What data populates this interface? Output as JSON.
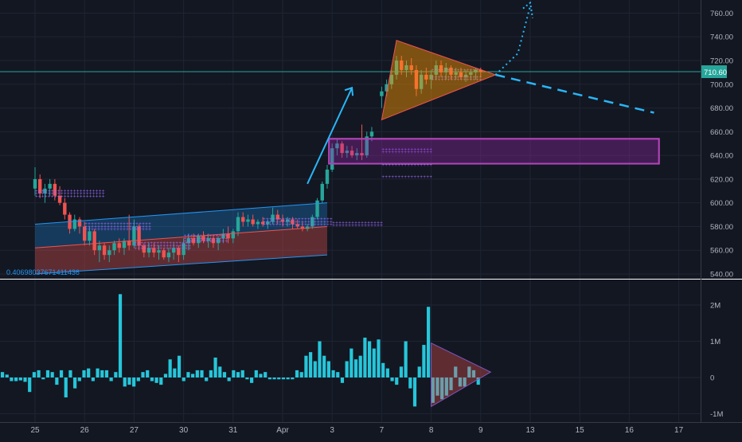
{
  "chart_data": [
    {
      "type": "candlestick",
      "role": "price",
      "price_axis": {
        "min": 530,
        "max": 770,
        "ticks": [
          540,
          560,
          580,
          600,
          620,
          640,
          660,
          680,
          700,
          720,
          740,
          760
        ]
      },
      "last_price_label": "710.60",
      "last_price": 710.6,
      "indicator_value_label": "0.40698037671411436",
      "candles": [
        {
          "t": 0.0,
          "o": 612,
          "h": 630,
          "l": 606,
          "c": 620
        },
        {
          "t": 0.1,
          "o": 620,
          "h": 624,
          "l": 604,
          "c": 608
        },
        {
          "t": 0.2,
          "o": 608,
          "h": 616,
          "l": 600,
          "c": 612
        },
        {
          "t": 0.3,
          "o": 612,
          "h": 620,
          "l": 606,
          "c": 616
        },
        {
          "t": 0.4,
          "o": 616,
          "h": 620,
          "l": 602,
          "c": 606
        },
        {
          "t": 0.5,
          "o": 606,
          "h": 614,
          "l": 598,
          "c": 600
        },
        {
          "t": 0.6,
          "o": 600,
          "h": 604,
          "l": 586,
          "c": 590
        },
        {
          "t": 0.7,
          "o": 590,
          "h": 592,
          "l": 574,
          "c": 578
        },
        {
          "t": 0.8,
          "o": 578,
          "h": 590,
          "l": 576,
          "c": 586
        },
        {
          "t": 0.9,
          "o": 586,
          "h": 588,
          "l": 574,
          "c": 580
        },
        {
          "t": 1.0,
          "o": 580,
          "h": 584,
          "l": 564,
          "c": 568
        },
        {
          "t": 1.1,
          "o": 568,
          "h": 580,
          "l": 564,
          "c": 576
        },
        {
          "t": 1.2,
          "o": 576,
          "h": 578,
          "l": 556,
          "c": 560
        },
        {
          "t": 1.3,
          "o": 560,
          "h": 568,
          "l": 550,
          "c": 564
        },
        {
          "t": 1.4,
          "o": 564,
          "h": 566,
          "l": 552,
          "c": 556
        },
        {
          "t": 1.5,
          "o": 556,
          "h": 564,
          "l": 550,
          "c": 560
        },
        {
          "t": 1.6,
          "o": 560,
          "h": 568,
          "l": 556,
          "c": 566
        },
        {
          "t": 1.7,
          "o": 566,
          "h": 570,
          "l": 558,
          "c": 562
        },
        {
          "t": 1.8,
          "o": 562,
          "h": 570,
          "l": 556,
          "c": 568
        },
        {
          "t": 1.9,
          "o": 568,
          "h": 590,
          "l": 560,
          "c": 564
        },
        {
          "t": 2.0,
          "o": 564,
          "h": 586,
          "l": 562,
          "c": 580
        },
        {
          "t": 2.1,
          "o": 580,
          "h": 582,
          "l": 560,
          "c": 564
        },
        {
          "t": 2.2,
          "o": 564,
          "h": 566,
          "l": 554,
          "c": 558
        },
        {
          "t": 2.3,
          "o": 558,
          "h": 566,
          "l": 554,
          "c": 562
        },
        {
          "t": 2.4,
          "o": 562,
          "h": 566,
          "l": 554,
          "c": 558
        },
        {
          "t": 2.5,
          "o": 558,
          "h": 564,
          "l": 552,
          "c": 560
        },
        {
          "t": 2.6,
          "o": 560,
          "h": 562,
          "l": 552,
          "c": 554
        },
        {
          "t": 2.7,
          "o": 554,
          "h": 562,
          "l": 550,
          "c": 558
        },
        {
          "t": 2.8,
          "o": 558,
          "h": 566,
          "l": 552,
          "c": 562
        },
        {
          "t": 2.9,
          "o": 562,
          "h": 564,
          "l": 550,
          "c": 556
        },
        {
          "t": 3.0,
          "o": 556,
          "h": 570,
          "l": 552,
          "c": 566
        },
        {
          "t": 3.1,
          "o": 566,
          "h": 574,
          "l": 560,
          "c": 570
        },
        {
          "t": 3.2,
          "o": 570,
          "h": 574,
          "l": 564,
          "c": 566
        },
        {
          "t": 3.3,
          "o": 566,
          "h": 574,
          "l": 562,
          "c": 572
        },
        {
          "t": 3.4,
          "o": 572,
          "h": 576,
          "l": 566,
          "c": 568
        },
        {
          "t": 3.5,
          "o": 568,
          "h": 574,
          "l": 562,
          "c": 570
        },
        {
          "t": 3.6,
          "o": 570,
          "h": 572,
          "l": 562,
          "c": 566
        },
        {
          "t": 3.7,
          "o": 566,
          "h": 572,
          "l": 560,
          "c": 570
        },
        {
          "t": 3.8,
          "o": 570,
          "h": 578,
          "l": 566,
          "c": 574
        },
        {
          "t": 3.9,
          "o": 574,
          "h": 580,
          "l": 566,
          "c": 570
        },
        {
          "t": 4.0,
          "o": 570,
          "h": 578,
          "l": 566,
          "c": 576
        },
        {
          "t": 4.1,
          "o": 576,
          "h": 592,
          "l": 572,
          "c": 588
        },
        {
          "t": 4.2,
          "o": 588,
          "h": 592,
          "l": 580,
          "c": 584
        },
        {
          "t": 4.3,
          "o": 584,
          "h": 590,
          "l": 580,
          "c": 586
        },
        {
          "t": 4.4,
          "o": 586,
          "h": 590,
          "l": 580,
          "c": 582
        },
        {
          "t": 4.5,
          "o": 582,
          "h": 586,
          "l": 578,
          "c": 584
        },
        {
          "t": 4.6,
          "o": 584,
          "h": 588,
          "l": 580,
          "c": 582
        },
        {
          "t": 4.7,
          "o": 582,
          "h": 586,
          "l": 578,
          "c": 584
        },
        {
          "t": 4.8,
          "o": 584,
          "h": 596,
          "l": 582,
          "c": 590
        },
        {
          "t": 4.9,
          "o": 590,
          "h": 594,
          "l": 582,
          "c": 586
        },
        {
          "t": 5.0,
          "o": 586,
          "h": 590,
          "l": 580,
          "c": 584
        },
        {
          "t": 5.1,
          "o": 584,
          "h": 588,
          "l": 580,
          "c": 586
        },
        {
          "t": 5.2,
          "o": 586,
          "h": 588,
          "l": 578,
          "c": 582
        },
        {
          "t": 5.3,
          "o": 582,
          "h": 586,
          "l": 578,
          "c": 580
        },
        {
          "t": 5.4,
          "o": 580,
          "h": 584,
          "l": 576,
          "c": 578
        },
        {
          "t": 5.5,
          "o": 578,
          "h": 582,
          "l": 576,
          "c": 580
        },
        {
          "t": 5.6,
          "o": 580,
          "h": 590,
          "l": 578,
          "c": 588
        },
        {
          "t": 5.7,
          "o": 588,
          "h": 604,
          "l": 586,
          "c": 602
        },
        {
          "t": 5.8,
          "o": 602,
          "h": 618,
          "l": 600,
          "c": 616
        },
        {
          "t": 5.9,
          "o": 616,
          "h": 632,
          "l": 612,
          "c": 628
        },
        {
          "t": 6.0,
          "o": 628,
          "h": 650,
          "l": 626,
          "c": 646
        },
        {
          "t": 6.1,
          "o": 646,
          "h": 654,
          "l": 640,
          "c": 650
        },
        {
          "t": 6.2,
          "o": 650,
          "h": 652,
          "l": 638,
          "c": 642
        },
        {
          "t": 6.3,
          "o": 642,
          "h": 648,
          "l": 638,
          "c": 644
        },
        {
          "t": 6.4,
          "o": 644,
          "h": 648,
          "l": 638,
          "c": 640
        },
        {
          "t": 6.5,
          "o": 640,
          "h": 646,
          "l": 636,
          "c": 642
        },
        {
          "t": 6.6,
          "o": 642,
          "h": 666,
          "l": 636,
          "c": 640
        },
        {
          "t": 6.7,
          "o": 640,
          "h": 660,
          "l": 638,
          "c": 656
        },
        {
          "t": 6.8,
          "o": 656,
          "h": 664,
          "l": 652,
          "c": 660
        },
        {
          "t": 7.0,
          "o": 690,
          "h": 698,
          "l": 680,
          "c": 694
        },
        {
          "t": 7.1,
          "o": 694,
          "h": 704,
          "l": 690,
          "c": 700
        },
        {
          "t": 7.2,
          "o": 700,
          "h": 712,
          "l": 696,
          "c": 708
        },
        {
          "t": 7.3,
          "o": 708,
          "h": 724,
          "l": 704,
          "c": 720
        },
        {
          "t": 7.4,
          "o": 720,
          "h": 724,
          "l": 708,
          "c": 712
        },
        {
          "t": 7.5,
          "o": 712,
          "h": 720,
          "l": 706,
          "c": 716
        },
        {
          "t": 7.6,
          "o": 716,
          "h": 722,
          "l": 708,
          "c": 712
        },
        {
          "t": 7.7,
          "o": 712,
          "h": 716,
          "l": 690,
          "c": 696
        },
        {
          "t": 7.8,
          "o": 696,
          "h": 712,
          "l": 692,
          "c": 708
        },
        {
          "t": 7.9,
          "o": 708,
          "h": 714,
          "l": 700,
          "c": 704
        },
        {
          "t": 8.0,
          "o": 704,
          "h": 712,
          "l": 696,
          "c": 708
        },
        {
          "t": 8.1,
          "o": 708,
          "h": 720,
          "l": 704,
          "c": 716
        },
        {
          "t": 8.2,
          "o": 716,
          "h": 720,
          "l": 706,
          "c": 710
        },
        {
          "t": 8.3,
          "o": 710,
          "h": 718,
          "l": 704,
          "c": 714
        },
        {
          "t": 8.4,
          "o": 714,
          "h": 716,
          "l": 704,
          "c": 708
        },
        {
          "t": 8.5,
          "o": 708,
          "h": 714,
          "l": 704,
          "c": 710
        },
        {
          "t": 8.6,
          "o": 710,
          "h": 714,
          "l": 704,
          "c": 706
        },
        {
          "t": 8.7,
          "o": 706,
          "h": 712,
          "l": 702,
          "c": 708
        },
        {
          "t": 8.8,
          "o": 708,
          "h": 712,
          "l": 704,
          "c": 710
        },
        {
          "t": 8.9,
          "o": 710,
          "h": 714,
          "l": 704,
          "c": 712
        },
        {
          "t": 9.0,
          "o": 712,
          "h": 714,
          "l": 706,
          "c": 710.6
        }
      ],
      "annotations": {
        "channel_top_line": {
          "t1": 0.0,
          "p1": 582,
          "t2": 5.9,
          "p2": 600
        },
        "channel_mid_line": {
          "t1": 0.0,
          "p1": 562,
          "t2": 5.9,
          "p2": 580
        },
        "channel_bottom_line": {
          "t1": 0.0,
          "p1": 540,
          "t2": 5.9,
          "p2": 556
        },
        "demand_zone": {
          "t1": 6.0,
          "t2": 12.6,
          "p_top": 654,
          "p_bottom": 633
        },
        "triangle": [
          {
            "t": 7.0,
            "p": 670
          },
          {
            "t": 7.3,
            "p": 737
          },
          {
            "t": 9.3,
            "p": 708
          }
        ],
        "projection_dashed": {
          "t1": 9.3,
          "p1": 708,
          "t2": 12.5,
          "p2": 676
        },
        "projection_dotted": [
          {
            "t": 9.3,
            "p": 708
          },
          {
            "t": 9.75,
            "p": 726
          },
          {
            "t": 10.0,
            "p": 766
          }
        ],
        "impulse_arrow": {
          "t1": 5.5,
          "p1": 616,
          "t2": 6.4,
          "p2": 697
        },
        "volume_clusters": [
          {
            "t1": 0.0,
            "t2": 1.4,
            "p": 608,
            "rows": 3
          },
          {
            "t1": 1.0,
            "t2": 2.3,
            "p": 580,
            "rows": 3
          },
          {
            "t1": 2.0,
            "t2": 3.1,
            "p": 564,
            "rows": 3
          },
          {
            "t1": 3.0,
            "t2": 3.9,
            "p": 570,
            "rows": 3
          },
          {
            "t1": 4.6,
            "t2": 6.0,
            "p": 584,
            "rows": 3
          },
          {
            "t1": 6.0,
            "t2": 7.0,
            "p": 582,
            "rows": 2
          },
          {
            "t1": 7.0,
            "t2": 8.0,
            "p": 644,
            "rows": 2
          },
          {
            "t1": 7.0,
            "t2": 8.0,
            "p": 632,
            "rows": 1
          },
          {
            "t1": 7.0,
            "t2": 8.0,
            "p": 622,
            "rows": 1
          },
          {
            "t1": 8.0,
            "t2": 9.0,
            "p": 712,
            "rows": 1
          },
          {
            "t1": 8.0,
            "t2": 9.0,
            "p": 705,
            "rows": 2
          }
        ]
      },
      "colors": {
        "up": "#26a69a",
        "down": "#ef5350",
        "zone": "#9c27b0",
        "channel": "#2196f3",
        "annotation": "#29b6f6"
      }
    },
    {
      "type": "bar",
      "role": "oscillator",
      "y_axis": {
        "min": -1.1,
        "max": 2.3,
        "ticks": [
          {
            "v": 2,
            "label": "2M"
          },
          {
            "v": 1,
            "label": "1M"
          },
          {
            "v": 0,
            "label": "0"
          },
          {
            "v": -1,
            "label": "-1M"
          }
        ]
      },
      "values": [
        0.15,
        0.08,
        -0.1,
        -0.1,
        -0.08,
        -0.12,
        -0.4,
        0.15,
        0.2,
        -0.05,
        0.2,
        0.15,
        -0.2,
        0.2,
        -0.55,
        0.2,
        -0.3,
        -0.1,
        0.2,
        0.25,
        -0.1,
        0.25,
        0.2,
        0.2,
        -0.1,
        0.15,
        2.3,
        -0.25,
        -0.2,
        -0.25,
        -0.1,
        0.15,
        0.2,
        -0.1,
        -0.15,
        -0.2,
        0.1,
        0.5,
        0.25,
        0.6,
        -0.1,
        0.15,
        0.1,
        0.2,
        0.2,
        -0.1,
        0.2,
        0.55,
        0.3,
        0.15,
        -0.1,
        0.2,
        0.15,
        0.2,
        -0.05,
        -0.15,
        0.2,
        0.1,
        0.15,
        -0.05,
        -0.05,
        -0.05,
        -0.05,
        -0.05,
        -0.05,
        0.2,
        0.15,
        0.6,
        0.7,
        0.45,
        1.0,
        0.6,
        0.45,
        0.2,
        0.15,
        -0.15,
        0.45,
        0.8,
        0.5,
        0.6,
        1.1,
        1.0,
        0.8,
        1.05,
        0.4,
        0.25,
        -0.1,
        -0.2,
        0.3,
        1.0,
        -0.3,
        -0.8,
        0.3,
        0.9,
        1.95,
        -0.7,
        -0.5,
        -0.6,
        -0.5,
        -0.35,
        0.3,
        -0.25,
        -0.25,
        0.3,
        0.2,
        -0.2
      ],
      "triangle": [
        {
          "t": 8.0,
          "v": 0.95
        },
        {
          "t": 8.0,
          "v": -0.8
        },
        {
          "t": 9.2,
          "v": 0.15
        }
      ]
    }
  ],
  "x_axis": {
    "ticks": [
      {
        "t": 0.0,
        "label": "25"
      },
      {
        "t": 1.0,
        "label": "26"
      },
      {
        "t": 2.0,
        "label": "27"
      },
      {
        "t": 3.0,
        "label": "30"
      },
      {
        "t": 4.0,
        "label": "31"
      },
      {
        "t": 5.0,
        "label": "Apr"
      },
      {
        "t": 6.0,
        "label": "3"
      },
      {
        "t": 7.0,
        "label": "7"
      },
      {
        "t": 8.0,
        "label": "8"
      },
      {
        "t": 9.0,
        "label": "9"
      },
      {
        "t": 10.0,
        "label": "13"
      },
      {
        "t": 11.0,
        "label": "15"
      },
      {
        "t": 12.0,
        "label": "16"
      },
      {
        "t": 13.0,
        "label": "17"
      }
    ]
  }
}
